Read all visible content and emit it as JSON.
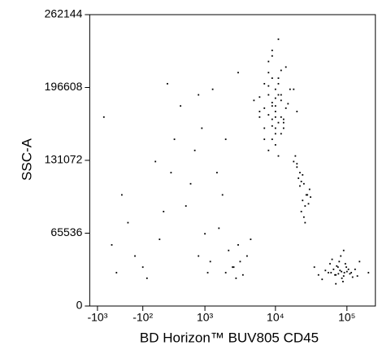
{
  "chart_data": {
    "type": "scatter",
    "x_label": "BD Horizon™ BUV805 CD45",
    "y_label": "SSC-A",
    "xscale": "biexponential",
    "color": "#000000",
    "xlim": [
      -1300,
      250000
    ],
    "ylim": [
      0,
      262144
    ],
    "xticks": [
      {
        "value": -1000,
        "label": "-10³"
      },
      {
        "value": -100,
        "label": "-10²"
      },
      {
        "value": 1000,
        "label": "10³"
      },
      {
        "value": 10000,
        "label": "10⁴"
      },
      {
        "value": 100000,
        "label": "10⁵"
      }
    ],
    "yticks": [
      0,
      65536,
      131072,
      196608,
      262144
    ],
    "x": [
      6000,
      7000,
      8000,
      9000,
      10000,
      11000,
      12000,
      13000,
      8000,
      9000,
      10000,
      7000,
      12000,
      15000,
      9000,
      11000,
      6000,
      8000,
      14000,
      10000,
      9000,
      13000,
      11000,
      7000,
      8000,
      10000,
      12000,
      16000,
      9000,
      11000,
      20000,
      5000,
      10000,
      8000,
      12000,
      9000,
      14000,
      11000,
      7000,
      10000,
      13000,
      9000,
      8000,
      11000,
      10000,
      12000,
      6000,
      18000,
      9000,
      10000,
      18000,
      22000,
      25000,
      20000,
      28000,
      24000,
      30000,
      21000,
      26000,
      19000,
      23000,
      27000,
      25000,
      22000,
      29000,
      24000,
      20000,
      26000,
      31000,
      23000,
      60000,
      70000,
      80000,
      90000,
      100000,
      75000,
      85000,
      65000,
      110000,
      95000,
      55000,
      120000,
      78000,
      88000,
      72000,
      68000,
      105000,
      82000,
      92000,
      140000,
      50000,
      45000,
      62000,
      98000,
      115000,
      76000,
      84000,
      70000,
      58000,
      130000,
      40000,
      35000,
      200000,
      150000,
      90000,
      -500,
      -200,
      -50,
      100,
      300,
      800,
      1500,
      2500,
      3000,
      500,
      -800,
      200,
      1200,
      2000,
      4000,
      600,
      -300,
      50,
      900,
      1800,
      3500,
      2200,
      1000,
      -100,
      400,
      700,
      2800,
      150,
      -600,
      1300,
      2600,
      3200,
      250,
      -400,
      1600,
      4500,
      2000,
      1100,
      800,
      3000
    ],
    "values": [
      175000,
      160000,
      190000,
      180000,
      170000,
      200000,
      185000,
      165000,
      210000,
      150000,
      195000,
      178000,
      155000,
      182000,
      168000,
      205000,
      188000,
      172000,
      215000,
      145000,
      225000,
      160000,
      190000,
      200000,
      140000,
      180000,
      170000,
      195000,
      230000,
      165000,
      175000,
      185000,
      155000,
      198000,
      212000,
      162000,
      178000,
      240000,
      150000,
      187000,
      168000,
      205000,
      220000,
      135000,
      175000,
      190000,
      170000,
      195000,
      183000,
      160000,
      130000,
      120000,
      110000,
      125000,
      100000,
      95000,
      105000,
      115000,
      90000,
      135000,
      85000,
      100000,
      80000,
      108000,
      92000,
      118000,
      128000,
      75000,
      98000,
      112000,
      30000,
      28000,
      32000,
      27000,
      31000,
      35000,
      25000,
      33000,
      29000,
      38000,
      30000,
      26000,
      40000,
      22000,
      36000,
      28000,
      33000,
      45000,
      30000,
      27000,
      32000,
      24000,
      42000,
      35000,
      30000,
      29000,
      31000,
      20000,
      38000,
      33000,
      28000,
      35000,
      30000,
      40000,
      50000,
      30000,
      45000,
      25000,
      60000,
      150000,
      190000,
      120000,
      35000,
      55000,
      90000,
      170000,
      200000,
      40000,
      30000,
      45000,
      110000,
      75000,
      130000,
      160000,
      100000,
      28000,
      50000,
      65000,
      35000,
      180000,
      140000,
      25000,
      85000,
      55000,
      195000,
      35000,
      40000,
      120000,
      100000,
      70000,
      60000,
      150000,
      30000,
      45000,
      210000
    ]
  }
}
